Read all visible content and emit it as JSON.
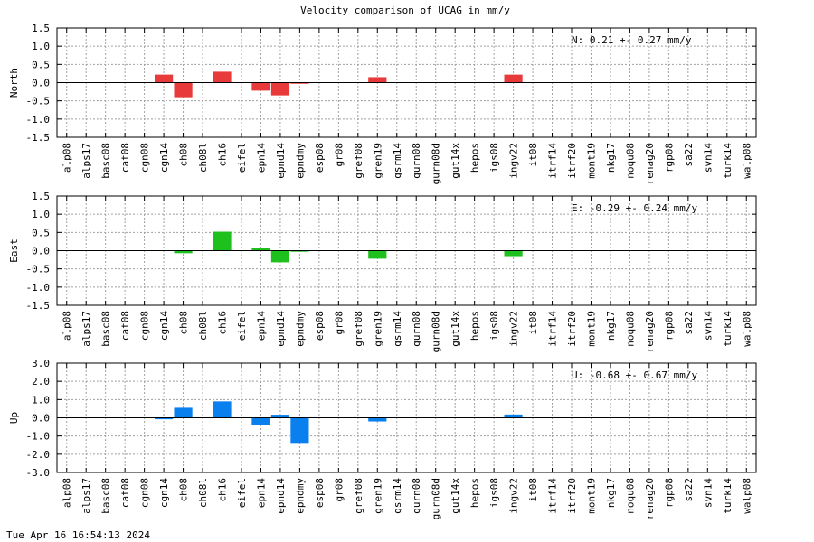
{
  "title": "Velocity comparison of UCAG in mm/y",
  "timestamp": "Tue Apr 16 16:54:13 2024",
  "categories": [
    "alp08",
    "alps17",
    "basc08",
    "cat08",
    "cgn08",
    "cgn14",
    "ch08",
    "ch08l",
    "ch16",
    "eifel",
    "epn14",
    "epnd14",
    "epndmy",
    "esp08",
    "gr08",
    "gref08",
    "gren19",
    "gsrm14",
    "gurn08",
    "gurn08d",
    "gut14x",
    "hepos",
    "igs08",
    "ingv22",
    "it08",
    "itrf14",
    "itrf20",
    "mont19",
    "nkg17",
    "noqu08",
    "renag20",
    "rgp08",
    "sa22",
    "svn14",
    "turk14",
    "walp08"
  ],
  "chart_data": [
    {
      "type": "bar",
      "ylabel": "North",
      "ylim": [
        -1.5,
        1.5
      ],
      "yticks": [
        "1.5",
        "1.0",
        "0.5",
        "0.0",
        "-0.5",
        "-1.0",
        "-1.5"
      ],
      "ytick_values": [
        1.5,
        1.0,
        0.5,
        0.0,
        -0.5,
        -1.0,
        -1.5
      ],
      "grid": true,
      "color": "#e83a3a",
      "annotation": "N:   0.21 +-  0.27 mm/y",
      "values": [
        0,
        0,
        0,
        0,
        0,
        0.22,
        -0.4,
        0,
        0.3,
        0,
        -0.22,
        -0.35,
        -0.03,
        0,
        0,
        0,
        0.15,
        0,
        0,
        0,
        0,
        0,
        0,
        0.22,
        0,
        0,
        0,
        0,
        0,
        0,
        0,
        0,
        0,
        0,
        0,
        0
      ]
    },
    {
      "type": "bar",
      "ylabel": "East",
      "ylim": [
        -1.5,
        1.5
      ],
      "yticks": [
        "1.5",
        "1.0",
        "0.5",
        "0.0",
        "-0.5",
        "-1.0",
        "-1.5"
      ],
      "ytick_values": [
        1.5,
        1.0,
        0.5,
        0.0,
        -0.5,
        -1.0,
        -1.5
      ],
      "grid": true,
      "color": "#1ec01e",
      "annotation": "E:  -0.29 +-  0.24 mm/y",
      "values": [
        0,
        0,
        0,
        0,
        0,
        0,
        -0.07,
        0,
        0.52,
        0,
        0.07,
        -0.32,
        -0.03,
        0,
        0,
        0,
        -0.22,
        0,
        0,
        0,
        0,
        0,
        0,
        -0.15,
        0,
        0,
        0,
        0,
        0,
        0,
        0,
        0,
        0,
        0,
        0,
        0
      ]
    },
    {
      "type": "bar",
      "ylabel": "Up",
      "ylim": [
        -3.0,
        3.0
      ],
      "yticks": [
        "3.0",
        "2.0",
        "1.0",
        "0.0",
        "-1.0",
        "-2.0",
        "-3.0"
      ],
      "ytick_values": [
        3.0,
        2.0,
        1.0,
        0.0,
        -1.0,
        -2.0,
        -3.0
      ],
      "grid": true,
      "color": "#0a80ee",
      "annotation": "U:  -0.68 +-  0.67 mm/y",
      "values": [
        0,
        0,
        0,
        0,
        0,
        -0.08,
        0.55,
        0,
        0.9,
        0,
        -0.4,
        0.17,
        -1.38,
        0,
        0,
        0,
        -0.2,
        0,
        0,
        0,
        0,
        0,
        0,
        0.18,
        0,
        0,
        0,
        0,
        0,
        0,
        0,
        0,
        0,
        0,
        0,
        0
      ]
    }
  ]
}
